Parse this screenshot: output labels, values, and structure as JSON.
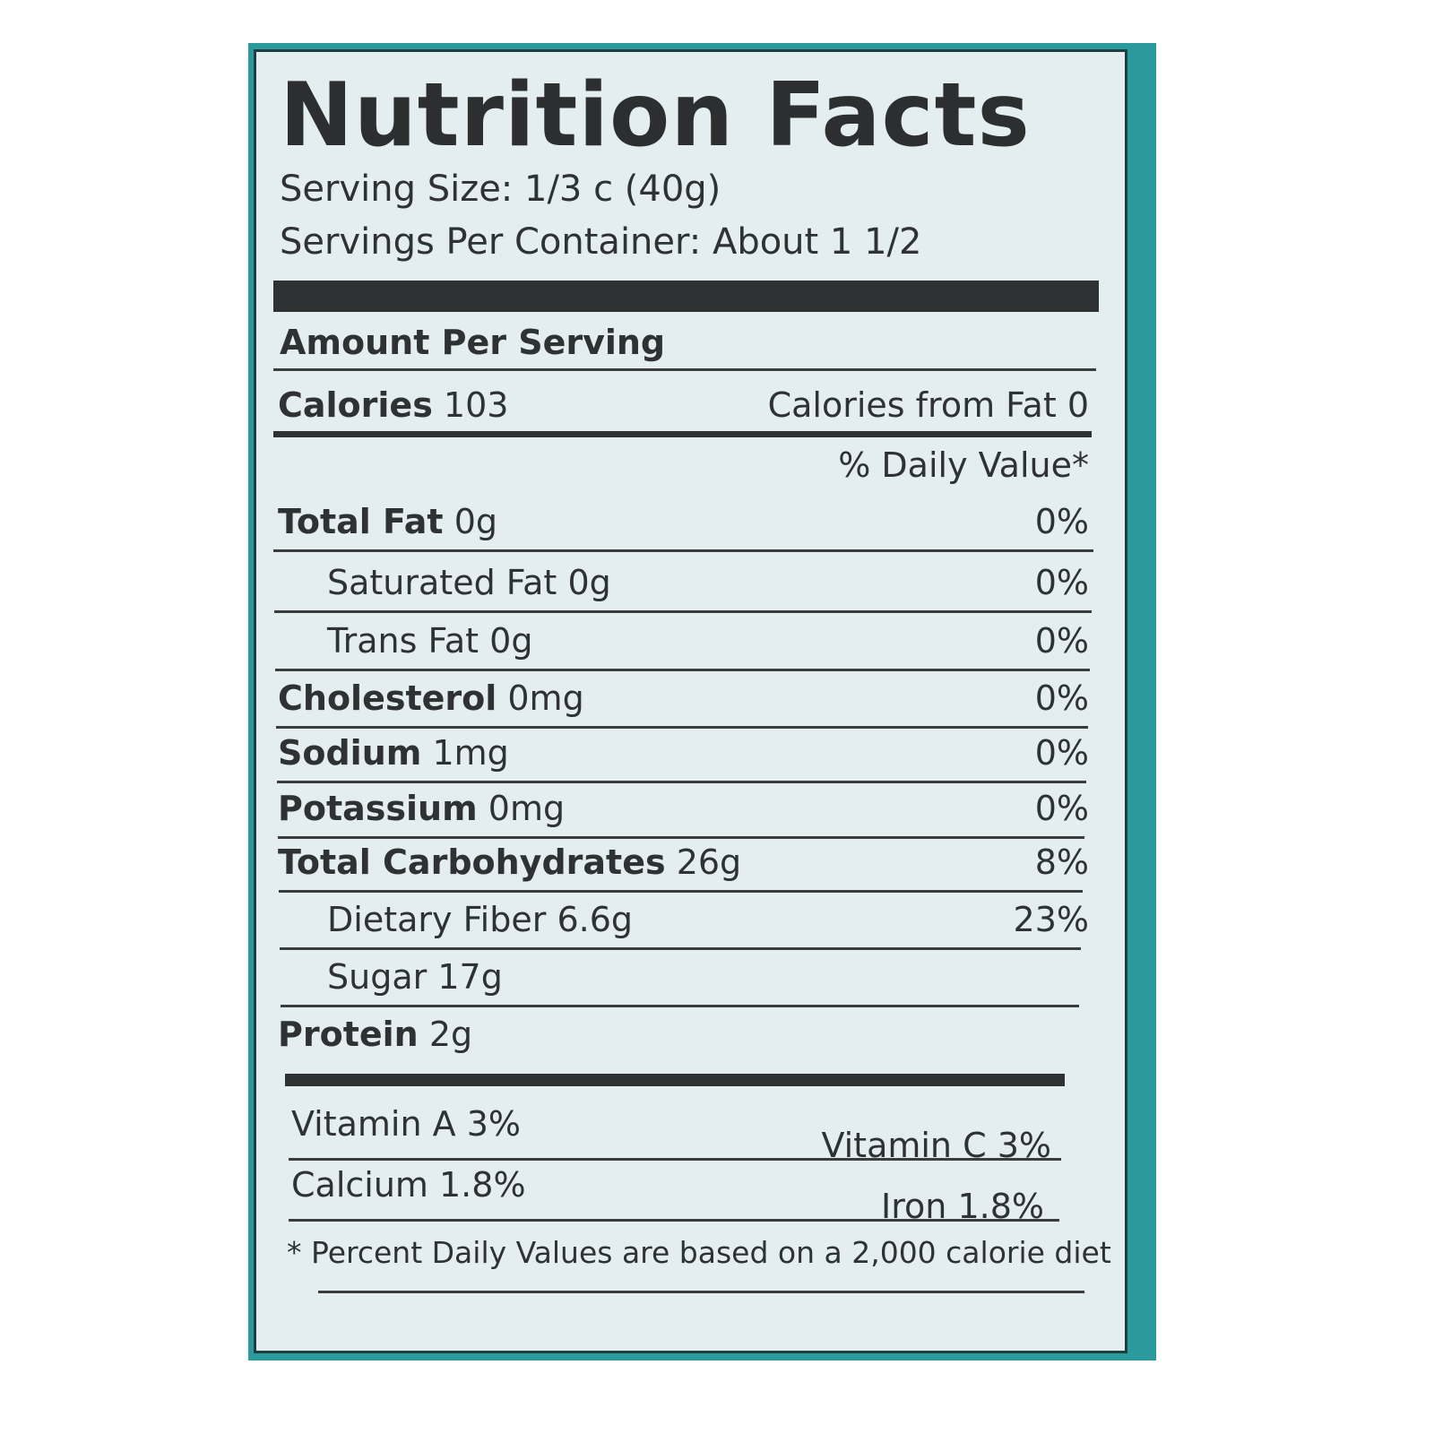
{
  "title": "Nutrition Facts",
  "serving_size": "Serving Size: 1/3 c (40g)",
  "servings_per_container": "Servings Per Container: About 1 1/2",
  "amount_per_serving": "Amount Per Serving",
  "calories": {
    "label": "Calories",
    "value": "103",
    "from_fat": "Calories from Fat 0"
  },
  "daily_value_header": "% Daily Value*",
  "nutrients": [
    {
      "label": "Total Fat",
      "amount": "0g",
      "dv": "0%"
    },
    {
      "label": "Saturated Fat",
      "amount": "0g",
      "dv": "0%"
    },
    {
      "label": "Trans Fat",
      "amount": "0g",
      "dv": "0%"
    },
    {
      "label": "Cholesterol",
      "amount": "0mg",
      "dv": "0%"
    },
    {
      "label": "Sodium",
      "amount": "1mg",
      "dv": "0%"
    },
    {
      "label": "Potassium",
      "amount": "0mg",
      "dv": "0%"
    },
    {
      "label": "Total Carbohydrates",
      "amount": "26g",
      "dv": "8%"
    },
    {
      "label": "Dietary Fiber",
      "amount": "6.6g",
      "dv": "23%"
    },
    {
      "label": "Sugar",
      "amount": "17g",
      "dv": ""
    },
    {
      "label": "Protein",
      "amount": "2g",
      "dv": ""
    }
  ],
  "vitamins": {
    "vitamin_a": "Vitamin A 3%",
    "vitamin_c": "Vitamin C 3%",
    "calcium": "Calcium 1.8%",
    "iron": "Iron 1.8%"
  },
  "footnote": "* Percent Daily Values are based on a 2,000 calorie diet",
  "colors": {
    "background_panel": "#2b9a9d",
    "label": "#e4edef",
    "text": "#2f3234"
  }
}
